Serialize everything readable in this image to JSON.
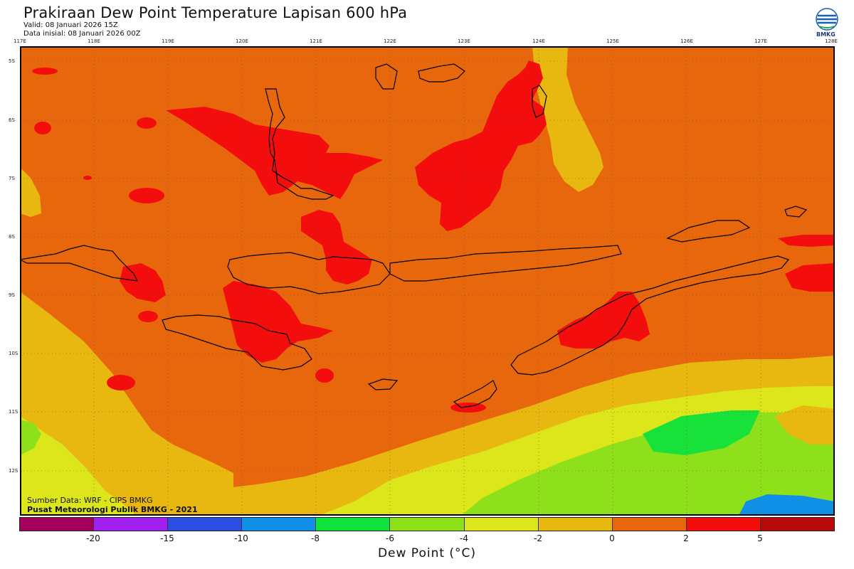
{
  "header": {
    "title": "Prakiraan Dew Point Temperature Lapisan 600 hPa",
    "valid": "Valid: 08 Januari 2026 15Z",
    "init": "Data inisial: 08 Januari 2026 00Z"
  },
  "logo": {
    "label": "BMKG",
    "icon": "bmkg-logo-icon"
  },
  "map": {
    "lon_ticks": [
      "117E",
      "118E",
      "119E",
      "120E",
      "121E",
      "122E",
      "123E",
      "124E",
      "125E",
      "126E",
      "127E",
      "128E"
    ],
    "lat_ticks": [
      "5S",
      "6S",
      "7S",
      "8S",
      "9S",
      "10S",
      "11S",
      "12S"
    ],
    "gridlines": true,
    "gridline_style": "dotted",
    "colors": {
      "red": "#f40d0d",
      "orange": "#e8670c",
      "gold": "#e8b810",
      "yellow": "#dce61a",
      "lime": "#8ee01a",
      "green": "#18e23a",
      "blue": "#0f8fe6",
      "coastline": "#000000"
    }
  },
  "credits": {
    "source": "Sumber Data: WRF - CIPS BMKG",
    "publisher": "Pusat Meteorologi Publik BMKG - 2021"
  },
  "colorbar": {
    "title": "Dew Point (°C)",
    "labels": [
      "-20",
      "-15",
      "-10",
      "-8",
      "-6",
      "-4",
      "-2",
      "0",
      "2",
      "5"
    ],
    "colors": [
      "#a3005e",
      "#a020f0",
      "#2a4ee0",
      "#0f8fe6",
      "#0fe23a",
      "#8ee01a",
      "#dce61a",
      "#e8b810",
      "#e8670c",
      "#f40d0d",
      "#b80a0a"
    ]
  }
}
